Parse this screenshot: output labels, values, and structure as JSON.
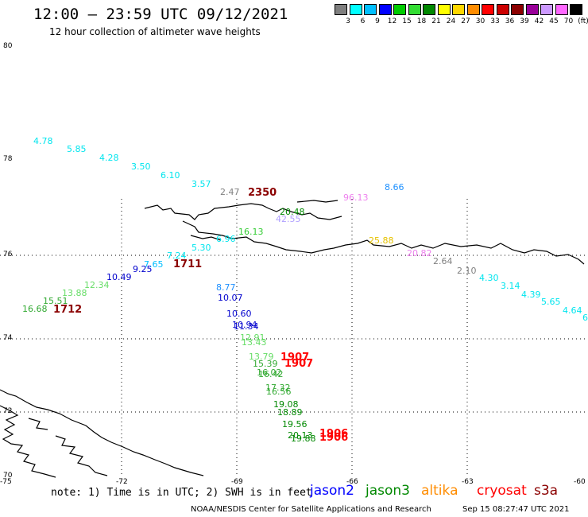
{
  "header": {
    "title": "12:00 – 23:59 UTC 09/12/2021",
    "subtitle": "12 hour collection of altimeter wave heights"
  },
  "colorbar": {
    "colors": [
      "#7f7f7f",
      "#00ffff",
      "#00bfff",
      "#0000ff",
      "#00cc00",
      "#33dd33",
      "#008800",
      "#ffff00",
      "#ffd700",
      "#ff8c00",
      "#ff0000",
      "#cc0000",
      "#8b0000",
      "#990099",
      "#cc99ff",
      "#ff66ff",
      "#000000"
    ],
    "labels": [
      "3",
      "6",
      "9",
      "12",
      "15",
      "18",
      "21",
      "24",
      "27",
      "30",
      "33",
      "36",
      "39",
      "42",
      "45",
      "70",
      "(ft)"
    ]
  },
  "axes": {
    "lat_labels": [
      "80",
      "78",
      "76",
      "74",
      "72",
      "70"
    ],
    "lon_labels": [
      "-75",
      "-72",
      "-69",
      "-66",
      "-63",
      "-60"
    ]
  },
  "observations": [
    {
      "text": "4.78",
      "color": "#00e5ee"
    },
    {
      "text": "5.85",
      "color": "#00e5ee"
    },
    {
      "text": "4.28",
      "color": "#00e5ee"
    },
    {
      "text": "3.50",
      "color": "#00e5ee"
    },
    {
      "text": "6.10",
      "color": "#00e5ee"
    },
    {
      "text": "3.57",
      "color": "#00e5ee"
    },
    {
      "text": "2.47",
      "color": "#808080"
    },
    {
      "text": "2350",
      "color": "#8b0000"
    },
    {
      "text": "96.13",
      "color": "#ee82ee"
    },
    {
      "text": "8.66",
      "color": "#1e90ff"
    },
    {
      "text": "20.48",
      "color": "#008800"
    },
    {
      "text": "42.55",
      "color": "#b0a0ff"
    },
    {
      "text": "16.13",
      "color": "#33cc33"
    },
    {
      "text": "6.96",
      "color": "#00e5ee"
    },
    {
      "text": "25.88",
      "color": "#e6c200"
    },
    {
      "text": "5.30",
      "color": "#00e5ee"
    },
    {
      "text": "20.82",
      "color": "#ee82ee"
    },
    {
      "text": "7.24",
      "color": "#00e5ee"
    },
    {
      "text": "1711",
      "color": "#8b0000"
    },
    {
      "text": "7.65",
      "color": "#00bfff"
    },
    {
      "text": "9.25",
      "color": "#0000cd"
    },
    {
      "text": "2.64",
      "color": "#808080"
    },
    {
      "text": "2.10",
      "color": "#808080"
    },
    {
      "text": "10.49",
      "color": "#0000cd"
    },
    {
      "text": "12.34",
      "color": "#66dd66"
    },
    {
      "text": "4.30",
      "color": "#00e5ee"
    },
    {
      "text": "3.14",
      "color": "#00e5ee"
    },
    {
      "text": "8.77",
      "color": "#1e90ff"
    },
    {
      "text": "13.88",
      "color": "#66dd66"
    },
    {
      "text": "10.07",
      "color": "#0000cd"
    },
    {
      "text": "4.39",
      "color": "#00e5ee"
    },
    {
      "text": "15.51",
      "color": "#33aa33"
    },
    {
      "text": "5.65",
      "color": "#00e5ee"
    },
    {
      "text": "16.68",
      "color": "#33aa33"
    },
    {
      "text": "1712",
      "color": "#8b0000"
    },
    {
      "text": "4.64",
      "color": "#00e5ee"
    },
    {
      "text": "10.60",
      "color": "#0000cd"
    },
    {
      "text": "6",
      "color": "#00e5ee"
    },
    {
      "text": "10.94",
      "color": "#0000cd"
    },
    {
      "text": "11.34",
      "color": "#0000cd"
    },
    {
      "text": "12.91",
      "color": "#66dd66"
    },
    {
      "text": "13.43",
      "color": "#66dd66"
    },
    {
      "text": "13.79",
      "color": "#66dd66"
    },
    {
      "text": "1907",
      "color": "#ff0000"
    },
    {
      "text": "15.39",
      "color": "#33aa33"
    },
    {
      "text": "1907",
      "color": "#ff0000"
    },
    {
      "text": "16.02",
      "color": "#33aa33"
    },
    {
      "text": "16.42",
      "color": "#33aa33"
    },
    {
      "text": "17.32",
      "color": "#33aa33"
    },
    {
      "text": "16.56",
      "color": "#33aa33"
    },
    {
      "text": "19.08",
      "color": "#008800"
    },
    {
      "text": "18.89",
      "color": "#008800"
    },
    {
      "text": "19.56",
      "color": "#008800"
    },
    {
      "text": "20.13",
      "color": "#008800"
    },
    {
      "text": "1906",
      "color": "#ff0000"
    },
    {
      "text": "19.88",
      "color": "#008800"
    },
    {
      "text": "1906",
      "color": "#ff0000"
    }
  ],
  "footer": {
    "note": "note: 1) Time is in UTC; 2) SWH is in feet",
    "satellites": [
      {
        "name": "jason2",
        "color": "#0000ff"
      },
      {
        "name": "jason3",
        "color": "#008800"
      },
      {
        "name": "altika",
        "color": "#ff8c00"
      },
      {
        "name": "cryosat",
        "color": "#ff0000"
      },
      {
        "name": "s3a",
        "color": "#8b0000"
      }
    ],
    "credit": "NOAA/NESDIS Center for Satellite Applications and Research",
    "timestamp": "Sep 15 08:27:47 UTC 2021"
  }
}
